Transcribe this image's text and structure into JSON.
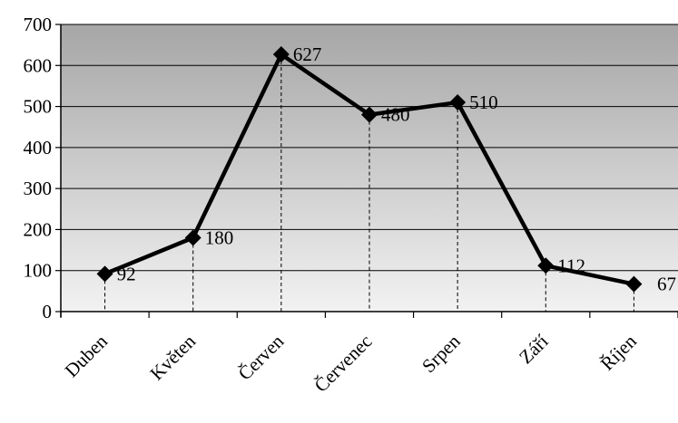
{
  "chart_data": {
    "type": "line",
    "categories": [
      "Duben",
      "Květen",
      "Červen",
      "Červenec",
      "Srpen",
      "Září",
      "Říjen"
    ],
    "values": [
      92,
      180,
      627,
      480,
      510,
      112,
      67
    ],
    "data_labels": [
      "92",
      "180",
      "627",
      "480",
      "510",
      "112",
      "67"
    ],
    "y_ticks": [
      "0",
      "100",
      "200",
      "300",
      "400",
      "500",
      "600",
      "700"
    ],
    "ylim": [
      0,
      700
    ],
    "grid": true,
    "legend": "none",
    "marker": "diamond",
    "drop_lines": true,
    "colors": {
      "line": "#000000",
      "marker": "#000000",
      "plot_bg_top": "#a6a6a6",
      "plot_bg_bottom": "#f2f2f2",
      "gridline": "#000000"
    }
  }
}
